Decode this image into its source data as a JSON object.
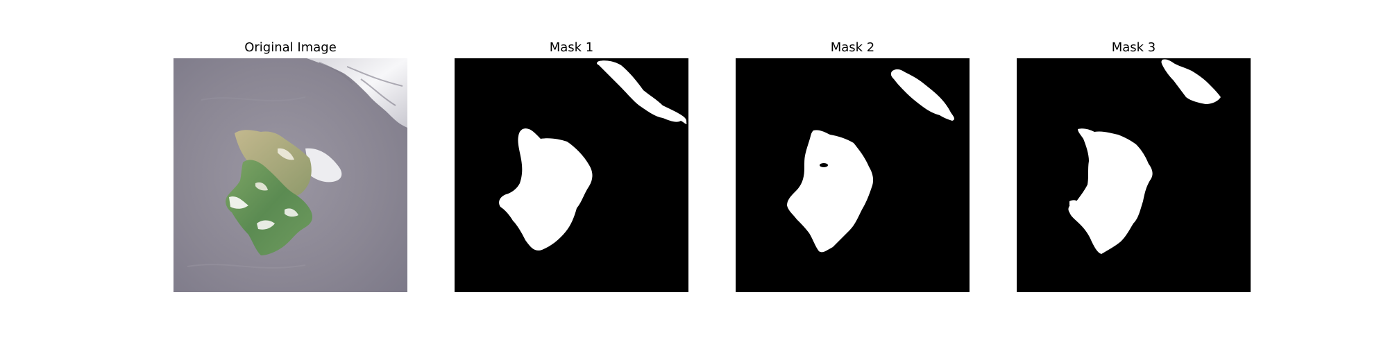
{
  "panels": [
    {
      "title": "Original Image"
    },
    {
      "title": "Mask 1"
    },
    {
      "title": "Mask 2"
    },
    {
      "title": "Mask 3"
    }
  ],
  "colors": {
    "mask_background": "#000000",
    "mask_foreground": "#ffffff",
    "water": "#8e8a96",
    "glare": "#f2f2f4",
    "green_region": "#5f8f55",
    "tan_region": "#a8a075"
  }
}
